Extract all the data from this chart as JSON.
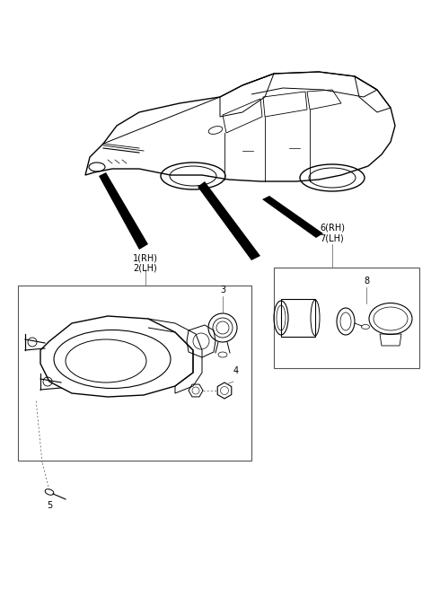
{
  "background_color": "#ffffff",
  "text_color": "#000000",
  "fig_width": 4.8,
  "fig_height": 6.56,
  "dpi": 100,
  "labels": {
    "1_2": "1(RH)\n2(LH)",
    "3": "3",
    "4": "4",
    "5": "5",
    "6_7": "6(RH)\n7(LH)",
    "8": "8"
  }
}
